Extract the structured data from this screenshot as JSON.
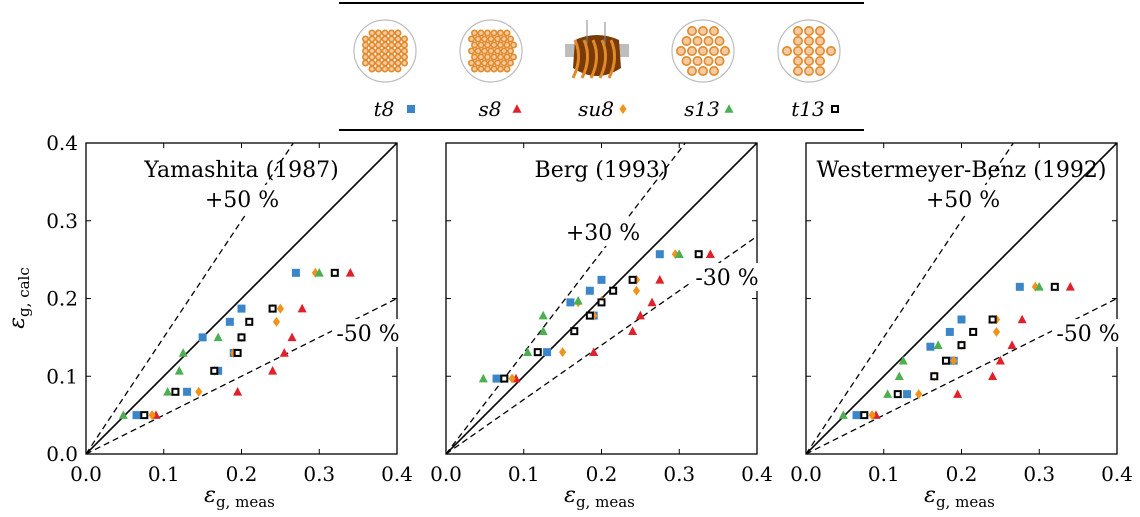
{
  "legend": {
    "entries": [
      {
        "key": "t8",
        "label": "t8",
        "marker": "square",
        "color": "#3a86c8",
        "tubes_icon": "tube-bundle-t8-icon"
      },
      {
        "key": "s8",
        "label": "s8",
        "marker": "triangle",
        "color": "#e0202a",
        "tubes_icon": "tube-bundle-s8-icon"
      },
      {
        "key": "su8",
        "label": "su8",
        "marker": "diamond",
        "color": "#f39219",
        "tubes_icon": "twisted-tube-bundle-icon"
      },
      {
        "key": "s13",
        "label": "s13",
        "marker": "triangle",
        "color": "#4caf50",
        "tubes_icon": "tube-bundle-s13-icon"
      },
      {
        "key": "t13",
        "label": "t13",
        "marker": "open-square",
        "color": "#000000",
        "tubes_icon": "tube-bundle-t13-icon"
      }
    ]
  },
  "axes_common": {
    "xlabel_main": "ε",
    "xlabel_sub": "g, meas",
    "ylabel_main": "ε",
    "ylabel_sub": "g, calc",
    "xlim": [
      0,
      0.4
    ],
    "ylim": [
      0,
      0.4
    ],
    "x_ticks": [
      "0.0",
      "0.1",
      "0.2",
      "0.3",
      "0.4"
    ],
    "y_ticks": [
      "0.0",
      "0.1",
      "0.2",
      "0.3",
      "0.4"
    ]
  },
  "chart_data": [
    {
      "type": "scatter",
      "title": "Yamashita (1987)",
      "upper_band_label": "+50 %",
      "lower_band_label": "-50 %",
      "band": 0.5,
      "xlim": [
        0,
        0.4
      ],
      "ylim": [
        0,
        0.4
      ],
      "series": [
        {
          "name": "t8",
          "points": [
            [
              0.065,
              0.05
            ],
            [
              0.13,
              0.08
            ],
            [
              0.15,
              0.15
            ],
            [
              0.17,
              0.107
            ],
            [
              0.2,
              0.187
            ],
            [
              0.19,
              0.13
            ],
            [
              0.27,
              0.233
            ],
            [
              0.185,
              0.17
            ]
          ]
        },
        {
          "name": "s8",
          "points": [
            [
              0.09,
              0.05
            ],
            [
              0.195,
              0.08
            ],
            [
              0.24,
              0.107
            ],
            [
              0.255,
              0.13
            ],
            [
              0.265,
              0.15
            ],
            [
              0.278,
              0.187
            ],
            [
              0.34,
              0.233
            ]
          ]
        },
        {
          "name": "su8",
          "points": [
            [
              0.085,
              0.05
            ],
            [
              0.145,
              0.08
            ],
            [
              0.165,
              0.107
            ],
            [
              0.19,
              0.13
            ],
            [
              0.2,
              0.15
            ],
            [
              0.25,
              0.187
            ],
            [
              0.245,
              0.17
            ],
            [
              0.295,
              0.233
            ]
          ]
        },
        {
          "name": "s13",
          "points": [
            [
              0.048,
              0.05
            ],
            [
              0.105,
              0.08
            ],
            [
              0.12,
              0.107
            ],
            [
              0.125,
              0.13
            ],
            [
              0.17,
              0.15
            ],
            [
              0.24,
              0.187
            ],
            [
              0.3,
              0.233
            ]
          ]
        },
        {
          "name": "t13",
          "points": [
            [
              0.075,
              0.05
            ],
            [
              0.115,
              0.08
            ],
            [
              0.165,
              0.107
            ],
            [
              0.195,
              0.13
            ],
            [
              0.2,
              0.15
            ],
            [
              0.24,
              0.187
            ],
            [
              0.21,
              0.17
            ],
            [
              0.32,
              0.233
            ]
          ]
        }
      ]
    },
    {
      "type": "scatter",
      "title": "Berg (1993)",
      "upper_band_label": "+30 %",
      "lower_band_label": "-30 %",
      "band": 0.3,
      "xlim": [
        0,
        0.4
      ],
      "ylim": [
        0,
        0.4
      ],
      "series": [
        {
          "name": "t8",
          "points": [
            [
              0.065,
              0.097
            ],
            [
              0.13,
              0.131
            ],
            [
              0.16,
              0.195
            ],
            [
              0.185,
              0.21
            ],
            [
              0.2,
              0.224
            ],
            [
              0.19,
              0.178
            ],
            [
              0.275,
              0.257
            ]
          ]
        },
        {
          "name": "s8",
          "points": [
            [
              0.09,
              0.097
            ],
            [
              0.19,
              0.131
            ],
            [
              0.24,
              0.158
            ],
            [
              0.25,
              0.178
            ],
            [
              0.265,
              0.195
            ],
            [
              0.275,
              0.224
            ],
            [
              0.34,
              0.257
            ]
          ]
        },
        {
          "name": "su8",
          "points": [
            [
              0.085,
              0.097
            ],
            [
              0.15,
              0.131
            ],
            [
              0.17,
              0.195
            ],
            [
              0.19,
              0.178
            ],
            [
              0.2,
              0.197
            ],
            [
              0.245,
              0.21
            ],
            [
              0.245,
              0.224
            ],
            [
              0.295,
              0.257
            ]
          ]
        },
        {
          "name": "s13",
          "points": [
            [
              0.048,
              0.097
            ],
            [
              0.105,
              0.131
            ],
            [
              0.125,
              0.158
            ],
            [
              0.125,
              0.178
            ],
            [
              0.17,
              0.197
            ],
            [
              0.3,
              0.257
            ]
          ]
        },
        {
          "name": "t13",
          "points": [
            [
              0.075,
              0.097
            ],
            [
              0.118,
              0.131
            ],
            [
              0.165,
              0.158
            ],
            [
              0.185,
              0.178
            ],
            [
              0.2,
              0.195
            ],
            [
              0.215,
              0.21
            ],
            [
              0.24,
              0.224
            ],
            [
              0.325,
              0.257
            ]
          ]
        }
      ]
    },
    {
      "type": "scatter",
      "title": "Westermeyer-Benz (1992)",
      "upper_band_label": "+50 %",
      "lower_band_label": "-50 %",
      "band": 0.5,
      "xlim": [
        0,
        0.4
      ],
      "ylim": [
        0,
        0.4
      ],
      "series": [
        {
          "name": "t8",
          "points": [
            [
              0.065,
              0.05
            ],
            [
              0.13,
              0.077
            ],
            [
              0.16,
              0.138
            ],
            [
              0.185,
              0.157
            ],
            [
              0.2,
              0.173
            ],
            [
              0.19,
              0.12
            ],
            [
              0.275,
              0.215
            ]
          ]
        },
        {
          "name": "s8",
          "points": [
            [
              0.09,
              0.05
            ],
            [
              0.195,
              0.077
            ],
            [
              0.24,
              0.1
            ],
            [
              0.25,
              0.12
            ],
            [
              0.265,
              0.14
            ],
            [
              0.278,
              0.173
            ],
            [
              0.34,
              0.215
            ]
          ]
        },
        {
          "name": "su8",
          "points": [
            [
              0.085,
              0.05
            ],
            [
              0.145,
              0.077
            ],
            [
              0.165,
              0.1
            ],
            [
              0.19,
              0.12
            ],
            [
              0.2,
              0.14
            ],
            [
              0.245,
              0.157
            ],
            [
              0.245,
              0.173
            ],
            [
              0.295,
              0.215
            ]
          ]
        },
        {
          "name": "s13",
          "points": [
            [
              0.048,
              0.05
            ],
            [
              0.105,
              0.077
            ],
            [
              0.12,
              0.1
            ],
            [
              0.125,
              0.12
            ],
            [
              0.17,
              0.14
            ],
            [
              0.24,
              0.173
            ],
            [
              0.3,
              0.215
            ]
          ]
        },
        {
          "name": "t13",
          "points": [
            [
              0.075,
              0.05
            ],
            [
              0.118,
              0.077
            ],
            [
              0.165,
              0.1
            ],
            [
              0.18,
              0.12
            ],
            [
              0.2,
              0.14
            ],
            [
              0.215,
              0.157
            ],
            [
              0.24,
              0.173
            ],
            [
              0.32,
              0.215
            ]
          ]
        }
      ]
    }
  ]
}
